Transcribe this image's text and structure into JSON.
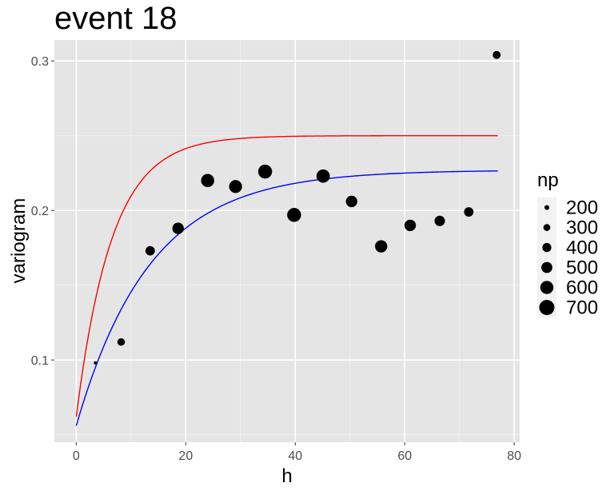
{
  "chart_data": {
    "type": "scatter",
    "title": "event  18",
    "xlabel": "h",
    "ylabel": "variogram",
    "xlim": [
      -4,
      81
    ],
    "ylim": [
      0.045,
      0.314
    ],
    "xticks": [
      0,
      20,
      40,
      60,
      80
    ],
    "yticks": [
      0.1,
      0.2,
      0.3
    ],
    "xtick_labels": [
      "0",
      "20",
      "40",
      "60",
      "80"
    ],
    "ytick_labels": [
      "0.1",
      "0.2",
      "0.3"
    ],
    "grid": true,
    "background": "#e5e5e5",
    "points": [
      {
        "h": 3.5,
        "variogram": 0.098,
        "np": 120
      },
      {
        "h": 8.2,
        "variogram": 0.112,
        "np": 330
      },
      {
        "h": 13.5,
        "variogram": 0.173,
        "np": 420
      },
      {
        "h": 18.6,
        "variogram": 0.188,
        "np": 520
      },
      {
        "h": 24.0,
        "variogram": 0.22,
        "np": 600
      },
      {
        "h": 29.1,
        "variogram": 0.216,
        "np": 590
      },
      {
        "h": 34.5,
        "variogram": 0.226,
        "np": 640
      },
      {
        "h": 39.8,
        "variogram": 0.197,
        "np": 640
      },
      {
        "h": 45.1,
        "variogram": 0.223,
        "np": 610
      },
      {
        "h": 50.3,
        "variogram": 0.206,
        "np": 520
      },
      {
        "h": 55.7,
        "variogram": 0.176,
        "np": 560
      },
      {
        "h": 61.0,
        "variogram": 0.19,
        "np": 520
      },
      {
        "h": 66.4,
        "variogram": 0.193,
        "np": 470
      },
      {
        "h": 71.7,
        "variogram": 0.199,
        "np": 420
      },
      {
        "h": 76.8,
        "variogram": 0.304,
        "np": 350
      }
    ],
    "lines": [
      {
        "color": "#ff0000",
        "nugget": 0.062,
        "sill": 0.25,
        "range": 6.5,
        "xmin": 0,
        "xmax": 77
      },
      {
        "color": "#0000ff",
        "nugget": 0.056,
        "sill": 0.227,
        "range": 13.5,
        "xmin": 0,
        "xmax": 77
      }
    ],
    "legend": {
      "title": "np",
      "position": "right",
      "entries": [
        {
          "label": "200",
          "value": 200
        },
        {
          "label": "300",
          "value": 300
        },
        {
          "label": "400",
          "value": 400
        },
        {
          "label": "500",
          "value": 500
        },
        {
          "label": "600",
          "value": 600
        },
        {
          "label": "700",
          "value": 700
        }
      ]
    },
    "point_color": "#000000"
  }
}
